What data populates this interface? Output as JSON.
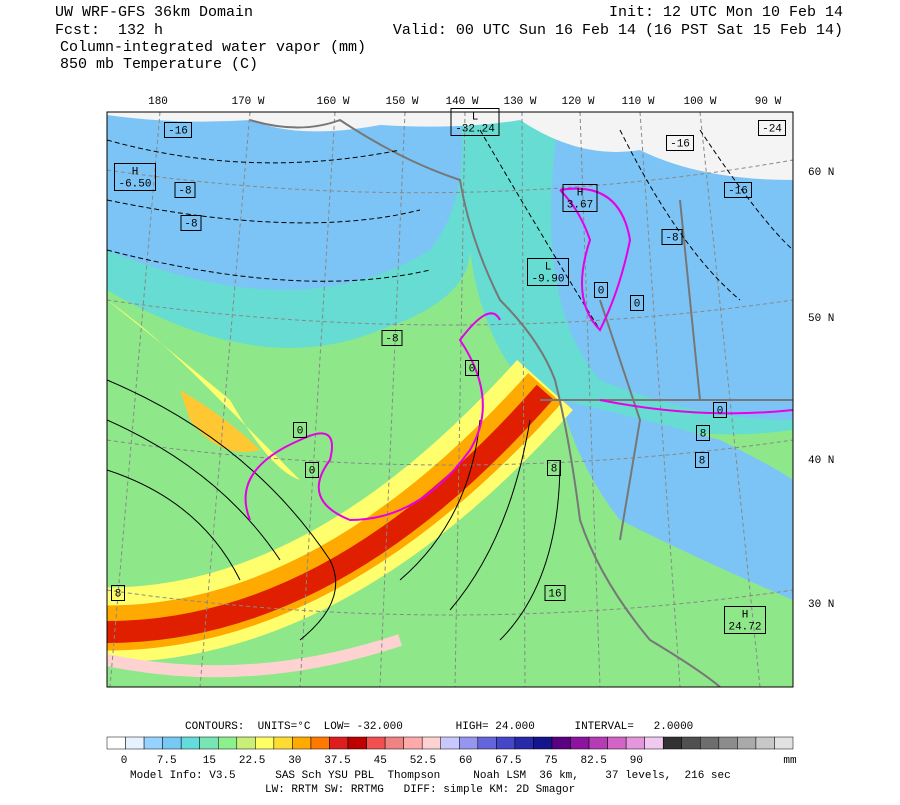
{
  "header": {
    "line1_left": "UW WRF-GFS 36km Domain",
    "line1_right": "Init: 12 UTC Mon 10 Feb 14",
    "line2_left": "Fcst:  132 h",
    "line2_right": "Valid: 00 UTC Sun 16 Feb 14 (16 PST Sat 15 Feb 14)",
    "line3": "Column-integrated water vapor (mm)",
    "line4": "850 mb Temperature (C)"
  },
  "map": {
    "lon_labels": [
      "180",
      "170 W",
      "160 W",
      "150 W",
      "140 W",
      "130 W",
      "120 W",
      "110 W",
      "100 W",
      "90 W"
    ],
    "lat_labels": [
      "60 N",
      "50 N",
      "40 N",
      "30 N"
    ],
    "contour_labels": [
      {
        "lines": [
          "-16"
        ]
      },
      {
        "lines": [
          "H",
          "-6.50"
        ]
      },
      {
        "lines": [
          "-8"
        ]
      },
      {
        "lines": [
          "-8"
        ]
      },
      {
        "lines": [
          "L",
          "-32.24"
        ]
      },
      {
        "lines": [
          "-16"
        ]
      },
      {
        "lines": [
          "H",
          "3.67"
        ]
      },
      {
        "lines": [
          "-8"
        ]
      },
      {
        "lines": [
          "-16"
        ]
      },
      {
        "lines": [
          "-24"
        ]
      },
      {
        "lines": [
          "L",
          "-9.90"
        ]
      },
      {
        "lines": [
          "0"
        ]
      },
      {
        "lines": [
          "0"
        ]
      },
      {
        "lines": [
          "-8"
        ]
      },
      {
        "lines": [
          "0"
        ]
      },
      {
        "lines": [
          "0"
        ]
      },
      {
        "lines": [
          "0"
        ]
      },
      {
        "lines": [
          "0"
        ]
      },
      {
        "lines": [
          "8"
        ]
      },
      {
        "lines": [
          "8"
        ]
      },
      {
        "lines": [
          "8"
        ]
      },
      {
        "lines": [
          "8"
        ]
      },
      {
        "lines": [
          "16"
        ]
      },
      {
        "lines": [
          "H",
          "24.72"
        ]
      }
    ]
  },
  "contours_info": "CONTOURS:  UNITS=°C  LOW= -32.000        HIGH= 24.000      INTERVAL=   2.0000",
  "colorbar": {
    "colors": [
      "#ffffff",
      "#e6f2ff",
      "#96d2ff",
      "#78c8f5",
      "#64dcdc",
      "#78e6b4",
      "#8cf08c",
      "#c8f078",
      "#ffff64",
      "#ffdc32",
      "#ffaa00",
      "#ff7800",
      "#dc1e1e",
      "#be0000",
      "#f05050",
      "#f08282",
      "#ffaaaa",
      "#ffd2d2",
      "#c8c8ff",
      "#9696f0",
      "#6464dc",
      "#4646c8",
      "#2828aa",
      "#14148c",
      "#5a0082",
      "#8c14a0",
      "#b43cb4",
      "#d264c8",
      "#e696dc",
      "#f0c8f0",
      "#323232",
      "#505050",
      "#6e6e6e",
      "#8c8c8c",
      "#aaaaaa",
      "#c8c8c8",
      "#e1e1e1"
    ],
    "labels": [
      "0",
      "7.5",
      "15",
      "22.5",
      "30",
      "37.5",
      "45",
      "52.5",
      "60",
      "67.5",
      "75",
      "82.5",
      "90"
    ],
    "unit": "mm"
  },
  "footer": {
    "line1": "Model Info: V3.5      SAS Sch YSU PBL  Thompson     Noah LSM  36 km,    37 levels,  216 sec",
    "line2": "LW: RRTM SW: RRTMG   DIFF: simple KM: 2D Smagor"
  }
}
